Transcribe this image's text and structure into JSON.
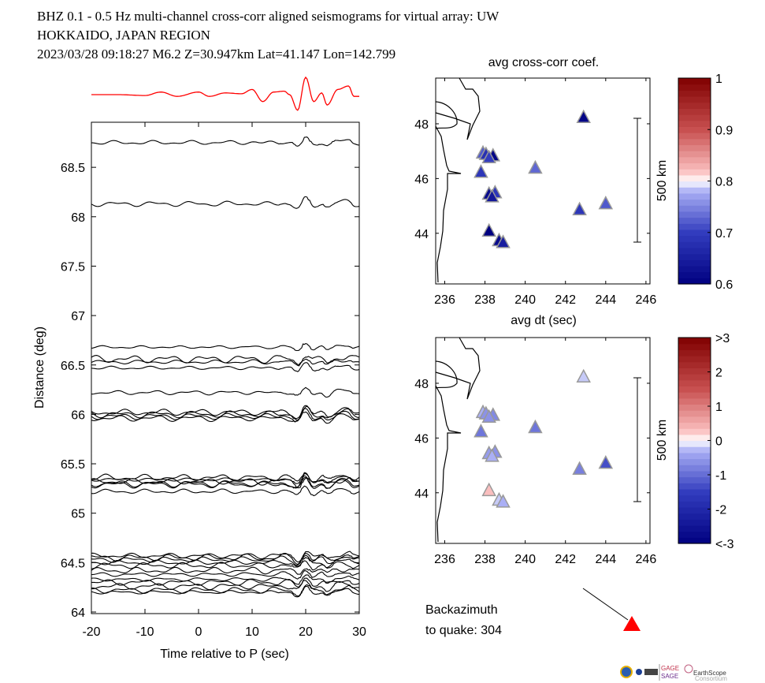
{
  "header": {
    "line1": "BHZ  0.1 - 0.5 Hz  multi-channel cross-corr aligned seismograms for virtual array: UW",
    "line2": "HOKKAIDO, JAPAN REGION",
    "line3": "2023/03/28  09:18:27  M6.2  Z=30.947km Lat=41.147 Lon=142.799"
  },
  "chart_data": [
    {
      "type": "line",
      "name_role": "seismogram record section",
      "xlabel": "Time relative to P (sec)",
      "ylabel": "Distance (deg)",
      "xlim": [
        -20,
        30
      ],
      "ylim": [
        64,
        68.85
      ],
      "xticks": [
        "-20",
        "-10",
        "0",
        "10",
        "20",
        "30"
      ],
      "yticks": [
        "64",
        "64.5",
        "65",
        "65.5",
        "66",
        "66.5",
        "67",
        "67.5",
        "68",
        "68.5"
      ],
      "stack_color": "#ff0000",
      "stack": {
        "t": [
          -20,
          -15,
          -10,
          -7,
          -4,
          0,
          2,
          5,
          8,
          10,
          12,
          14,
          16,
          17,
          18.5,
          20,
          21.5,
          23,
          24,
          26,
          28,
          29,
          30
        ],
        "amp": [
          0,
          0,
          -0.05,
          0.15,
          -0.1,
          0.15,
          -0.1,
          0.1,
          0.05,
          0.3,
          -0.4,
          0.15,
          0.2,
          0,
          -0.9,
          1.0,
          -0.4,
          0.1,
          -0.6,
          0.3,
          0.5,
          -0.1,
          -0.1
        ]
      },
      "trace_distances": [
        68.75,
        68.13,
        66.68,
        66.56,
        66.53,
        66.47,
        66.22,
        66.02,
        66.0,
        65.98,
        65.96,
        65.36,
        65.34,
        65.32,
        65.3,
        65.29,
        65.22,
        64.57,
        64.55,
        64.53,
        64.5,
        64.47,
        64.42,
        64.38,
        64.33,
        64.3,
        64.26,
        64.22,
        64.2
      ]
    },
    {
      "type": "scatter",
      "title": "avg cross-corr coef.",
      "xlabel": "avg dt (sec)",
      "xticks": [
        "236",
        "238",
        "240",
        "242",
        "244",
        "246"
      ],
      "yticks": [
        "44",
        "46",
        "48"
      ],
      "xlim": [
        235.55,
        246.2
      ],
      "ylim": [
        42.15,
        49.67
      ],
      "scale_bar": "500 km",
      "colorbar": {
        "ticks": [
          "0.6",
          "0.7",
          "0.8",
          "0.9",
          "1"
        ],
        "range": [
          0.6,
          1
        ]
      },
      "points": [
        {
          "x": 242.9,
          "y": 48.25,
          "v": 0.61
        },
        {
          "x": 237.9,
          "y": 46.95,
          "v": 0.72
        },
        {
          "x": 238.05,
          "y": 46.9,
          "v": 0.68
        },
        {
          "x": 238.4,
          "y": 46.85,
          "v": 0.61
        },
        {
          "x": 238.2,
          "y": 46.78,
          "v": 0.7
        },
        {
          "x": 240.5,
          "y": 46.4,
          "v": 0.73
        },
        {
          "x": 237.8,
          "y": 46.25,
          "v": 0.69
        },
        {
          "x": 238.2,
          "y": 45.45,
          "v": 0.62
        },
        {
          "x": 238.5,
          "y": 45.5,
          "v": 0.69
        },
        {
          "x": 238.35,
          "y": 45.35,
          "v": 0.64
        },
        {
          "x": 242.7,
          "y": 44.88,
          "v": 0.69
        },
        {
          "x": 244.0,
          "y": 45.1,
          "v": 0.72
        },
        {
          "x": 238.2,
          "y": 44.1,
          "v": 0.6
        },
        {
          "x": 238.7,
          "y": 43.75,
          "v": 0.62
        },
        {
          "x": 238.9,
          "y": 43.68,
          "v": 0.65
        }
      ]
    },
    {
      "type": "scatter",
      "xticks": [
        "236",
        "238",
        "240",
        "242",
        "244",
        "246"
      ],
      "yticks": [
        "44",
        "46",
        "48"
      ],
      "xlim": [
        235.55,
        246.2
      ],
      "ylim": [
        42.15,
        49.67
      ],
      "scale_bar": "500 km",
      "colorbar": {
        "ticks": [
          "<-3",
          "-2",
          "-1",
          "0",
          "1",
          "2",
          ">3"
        ],
        "range": [
          -3,
          3
        ]
      },
      "points": [
        {
          "x": 242.9,
          "y": 48.25,
          "v": -0.2
        },
        {
          "x": 237.9,
          "y": 46.95,
          "v": -0.3
        },
        {
          "x": 238.05,
          "y": 46.9,
          "v": -0.6
        },
        {
          "x": 238.4,
          "y": 46.85,
          "v": -0.7
        },
        {
          "x": 238.2,
          "y": 46.78,
          "v": -0.6
        },
        {
          "x": 240.5,
          "y": 46.4,
          "v": -0.9
        },
        {
          "x": 237.8,
          "y": 46.25,
          "v": -0.9
        },
        {
          "x": 238.2,
          "y": 45.45,
          "v": -0.5
        },
        {
          "x": 238.5,
          "y": 45.5,
          "v": -0.6
        },
        {
          "x": 238.35,
          "y": 45.35,
          "v": -0.3
        },
        {
          "x": 242.7,
          "y": 44.88,
          "v": -0.8
        },
        {
          "x": 244.0,
          "y": 45.1,
          "v": -1.3
        },
        {
          "x": 238.2,
          "y": 44.1,
          "v": 0.3
        },
        {
          "x": 238.7,
          "y": 43.75,
          "v": -0.2
        },
        {
          "x": 238.9,
          "y": 43.68,
          "v": -0.3
        }
      ]
    }
  ],
  "backazimuth": {
    "label1": "Backazimuth",
    "label2": "to quake:  304",
    "value": 304,
    "marker_color": "#ff0000"
  },
  "logos": {
    "gage": "GAGE",
    "sage": "SAGE",
    "earthscope": "EarthScope",
    "consortium": "Consortium"
  }
}
